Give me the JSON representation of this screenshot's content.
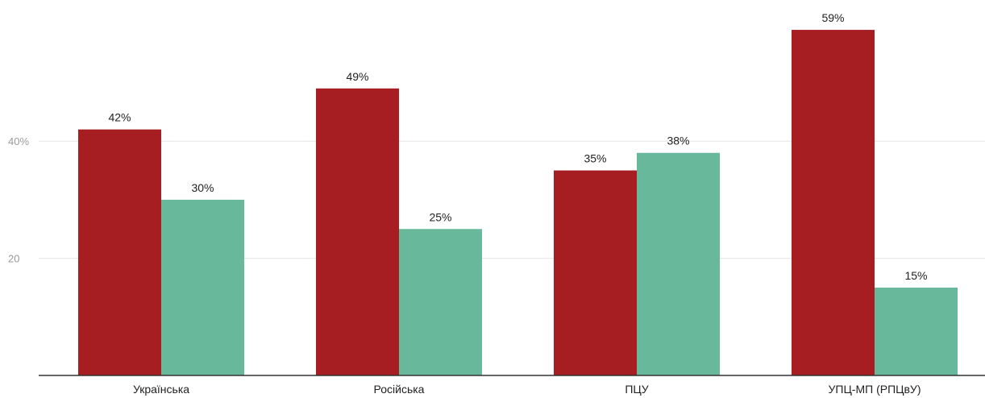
{
  "chart_data": {
    "type": "bar",
    "categories": [
      "Українська",
      "Російська",
      "ПЦУ",
      "УПЦ-МП (РПЦвУ)"
    ],
    "series": [
      {
        "values": [
          42,
          49,
          35,
          59
        ],
        "labels": [
          "42%",
          "49%",
          "35%",
          "59%"
        ],
        "color": "#a61e22"
      },
      {
        "values": [
          30,
          25,
          38,
          15
        ],
        "labels": [
          "30%",
          "25%",
          "38%",
          "15%"
        ],
        "color": "#68b89c"
      }
    ],
    "yticks": [
      {
        "value": 20,
        "label": "20"
      },
      {
        "value": 40,
        "label": "40%"
      }
    ],
    "ylim": [
      0,
      62
    ],
    "grid": true,
    "legend": "none"
  }
}
